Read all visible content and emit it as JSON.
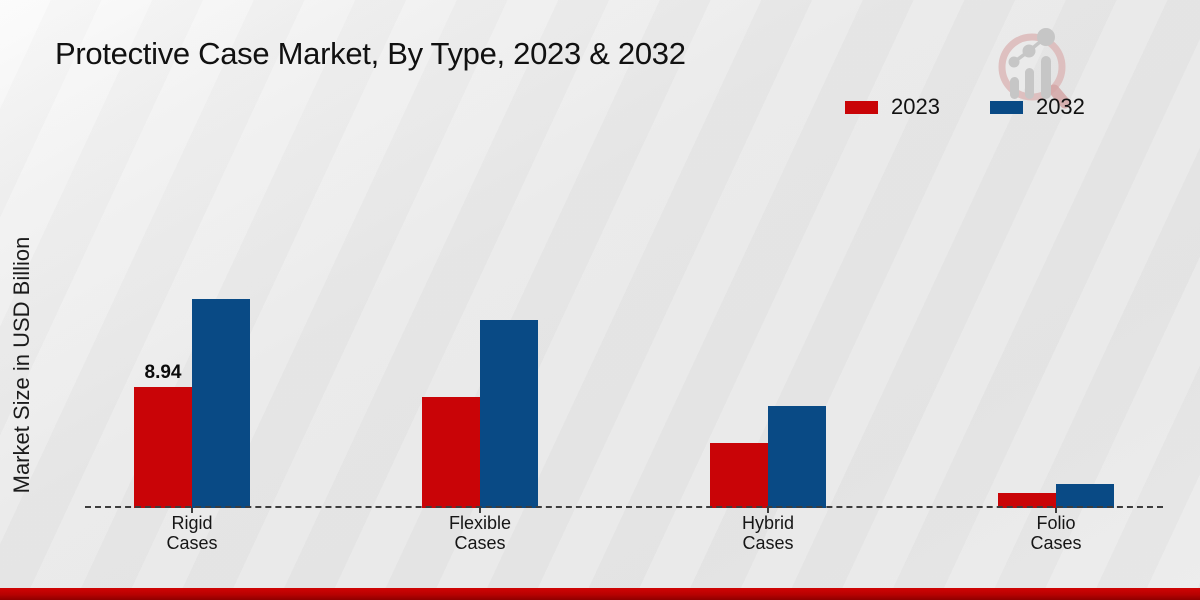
{
  "title": "Protective Case Market, By Type, 2023 & 2032",
  "y_axis_label": "Market Size in USD Billion",
  "legend": {
    "items": [
      {
        "label": "2023",
        "color": "#c90407"
      },
      {
        "label": "2032",
        "color": "#094a85"
      }
    ]
  },
  "watermark": {
    "name": "magnifier-growth-chart-logo",
    "ring_color": "#dcb9b9",
    "glyph_color": "#c6c6c6"
  },
  "chart_data": {
    "type": "bar",
    "title": "Protective Case Market, By Type, 2023 & 2032",
    "xlabel": "",
    "ylabel": "Market Size in USD Billion",
    "unit": "USD Billion",
    "categories": [
      "Rigid Cases",
      "Flexible Cases",
      "Hybrid Cases",
      "Folio Cases"
    ],
    "category_label_lines": [
      [
        "Rigid",
        "Cases"
      ],
      [
        "Flexible",
        "Cases"
      ],
      [
        "Hybrid",
        "Cases"
      ],
      [
        "Folio",
        "Cases"
      ]
    ],
    "series": [
      {
        "name": "2023",
        "color": "#c90407",
        "values": [
          8.94,
          8.2,
          4.8,
          1.1
        ]
      },
      {
        "name": "2032",
        "color": "#094a85",
        "values": [
          15.45,
          13.9,
          7.55,
          1.8
        ]
      }
    ],
    "data_labels": [
      {
        "category_index": 0,
        "series_index": 0,
        "text": "8.94"
      }
    ],
    "ylim": [
      0,
      16.5
    ],
    "grid": false,
    "baseline_style": "dashed",
    "y_ticks_visible": false,
    "legend_position": "top-right"
  }
}
